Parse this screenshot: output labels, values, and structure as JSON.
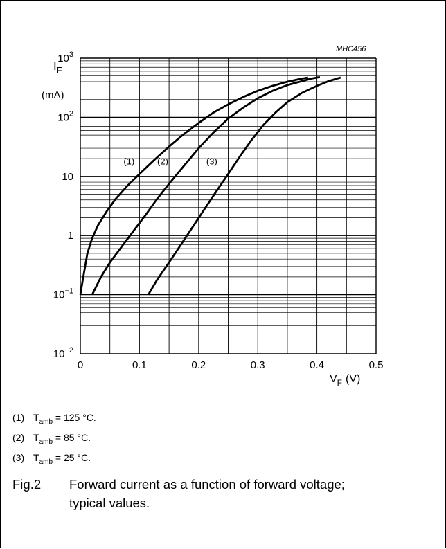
{
  "chart_data": {
    "type": "line",
    "code": "MHC456",
    "ylabel_main": "I",
    "ylabel_sub": "F",
    "ylabel_unit": "(mA)",
    "xlabel_main": "V",
    "xlabel_sub": "F",
    "xlabel_unit": "(V)",
    "y_scale": "log",
    "xlim": [
      0,
      0.5
    ],
    "ylim": [
      0.01,
      1000
    ],
    "grid": true,
    "x_ticks": [
      "0",
      "0.1",
      "0.2",
      "0.3",
      "0.4",
      "0.5"
    ],
    "y_ticks": [
      {
        "base": "10",
        "exp": "3"
      },
      {
        "base": "10",
        "exp": "2"
      },
      {
        "base": "10",
        "exp": ""
      },
      {
        "base": "1",
        "exp": ""
      },
      {
        "base": "10",
        "exp": "−1"
      },
      {
        "base": "10",
        "exp": "−2"
      }
    ],
    "series": [
      {
        "name": "(1)",
        "x": [
          0.0,
          0.005,
          0.012,
          0.02,
          0.03,
          0.045,
          0.06,
          0.08,
          0.1,
          0.125,
          0.15,
          0.175,
          0.2,
          0.225,
          0.25,
          0.275,
          0.3,
          0.325,
          0.35,
          0.37,
          0.385
        ],
        "y": [
          0.1,
          0.2,
          0.5,
          0.9,
          1.5,
          2.6,
          4.2,
          7,
          11,
          19,
          32,
          52,
          80,
          120,
          165,
          220,
          280,
          340,
          400,
          440,
          470
        ]
      },
      {
        "name": "(2)",
        "x": [
          0.02,
          0.035,
          0.05,
          0.07,
          0.09,
          0.11,
          0.13,
          0.15,
          0.175,
          0.2,
          0.225,
          0.25,
          0.275,
          0.3,
          0.325,
          0.35,
          0.375,
          0.39,
          0.405
        ],
        "y": [
          0.1,
          0.2,
          0.35,
          0.65,
          1.2,
          2.2,
          4.2,
          7.5,
          15,
          30,
          55,
          95,
          145,
          210,
          280,
          350,
          410,
          450,
          480
        ]
      },
      {
        "name": "(3)",
        "x": [
          0.115,
          0.13,
          0.15,
          0.17,
          0.19,
          0.21,
          0.23,
          0.25,
          0.27,
          0.29,
          0.31,
          0.33,
          0.35,
          0.375,
          0.4,
          0.42,
          0.44
        ],
        "y": [
          0.1,
          0.18,
          0.35,
          0.7,
          1.4,
          2.8,
          5.6,
          11,
          22,
          42,
          75,
          120,
          180,
          260,
          340,
          410,
          470
        ]
      }
    ]
  },
  "notes": [
    {
      "num": "(1)",
      "t": "T",
      "sub": "amb",
      "rest": " = 125 °C."
    },
    {
      "num": "(2)",
      "t": "T",
      "sub": "amb",
      "rest": " = 85 °C."
    },
    {
      "num": "(3)",
      "t": "T",
      "sub": "amb",
      "rest": " = 25 °C."
    }
  ],
  "caption": {
    "fig": "Fig.2",
    "text": "Forward current as a function of forward voltage; typical values."
  }
}
